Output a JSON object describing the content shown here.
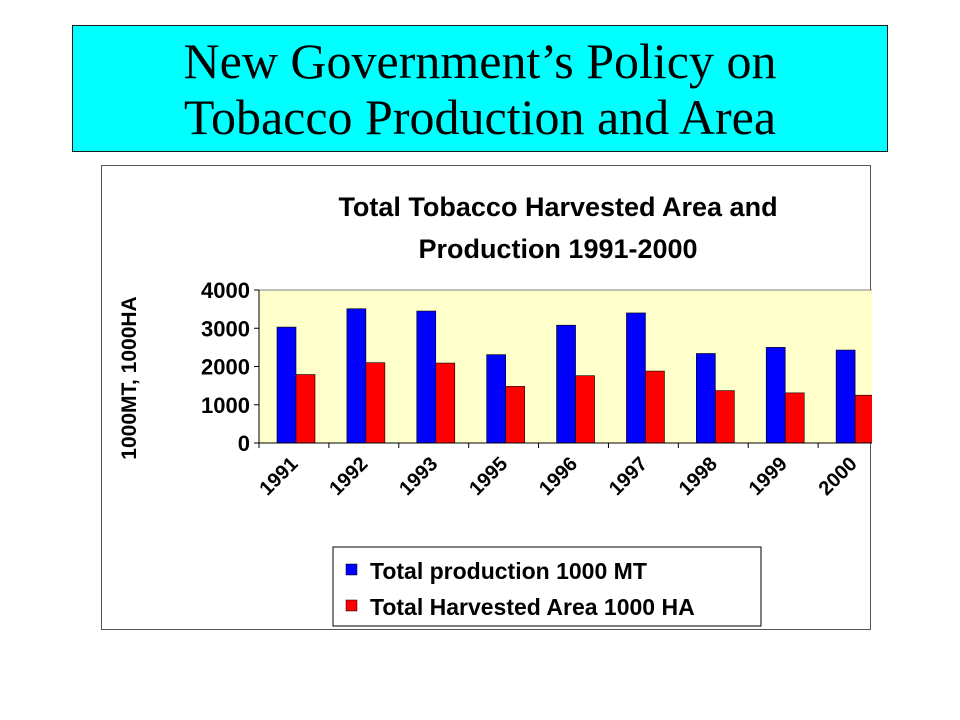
{
  "slide": {
    "title_line1": "New Government’s Policy on",
    "title_line2": "Tobacco Production and Area"
  },
  "colors": {
    "title_background": "#00ffff",
    "plot_background": "#ffffcc",
    "series_production": "#0000ff",
    "series_area": "#ff0000"
  },
  "chart_data": {
    "type": "bar",
    "title_line1": "Total Tobacco Harvested Area and",
    "title_line2": "Production 1991-2000",
    "xlabel": "",
    "ylabel": "1000MT, 1000HA",
    "ylim": [
      0,
      4000
    ],
    "yticks": [
      "0",
      "1000",
      "2000",
      "3000",
      "4000"
    ],
    "categories": [
      "1991",
      "1992",
      "1993",
      "1995",
      "1996",
      "1997",
      "1998",
      "1999",
      "2000"
    ],
    "series": [
      {
        "name": "Total production 1000 MT",
        "color": "#0000ff",
        "values": [
          3030,
          3510,
          3450,
          2310,
          3080,
          3400,
          2340,
          2500,
          2430
        ]
      },
      {
        "name": "Total Harvested Area 1000 HA",
        "color": "#ff0000",
        "values": [
          1790,
          2100,
          2090,
          1480,
          1760,
          1880,
          1370,
          1310,
          1250
        ]
      }
    ],
    "grid": false,
    "legend_position": "bottom"
  }
}
